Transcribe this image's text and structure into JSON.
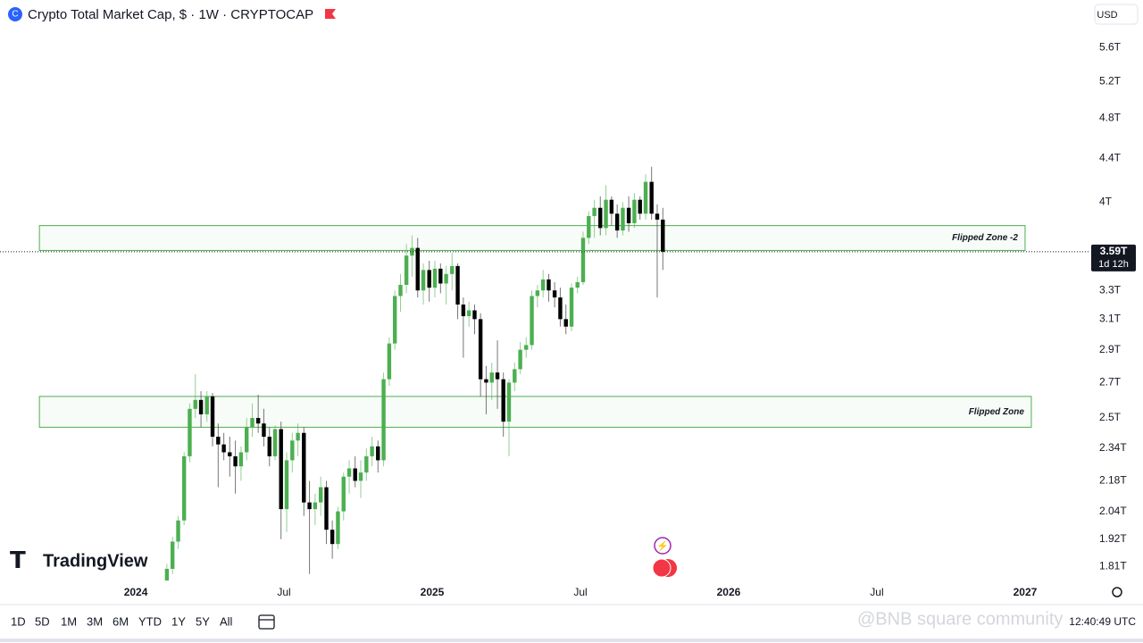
{
  "chart_data": {
    "type": "candlestick",
    "title": "Crypto Total Market Cap, $ · 1W · CRYPTOCAP",
    "currency": "USD",
    "log_scale": true,
    "ylim": [
      1.755,
      6.21
    ],
    "yticks": [
      {
        "value": 5.6,
        "label": "5.6T"
      },
      {
        "value": 5.2,
        "label": "5.2T"
      },
      {
        "value": 4.8,
        "label": "4.8T"
      },
      {
        "value": 4.4,
        "label": "4.4T"
      },
      {
        "value": 4,
        "label": "4T"
      },
      {
        "value": 3.3,
        "label": "3.3T"
      },
      {
        "value": 3.1,
        "label": "3.1T"
      },
      {
        "value": 2.9,
        "label": "2.9T"
      },
      {
        "value": 2.7,
        "label": "2.7T"
      },
      {
        "value": 2.5,
        "label": "2.5T"
      },
      {
        "value": 2.34,
        "label": "2.34T"
      },
      {
        "value": 2.18,
        "label": "2.18T"
      },
      {
        "value": 2.04,
        "label": "2.04T"
      },
      {
        "value": 1.92,
        "label": "1.92T"
      },
      {
        "value": 1.81,
        "label": "1.81T"
      }
    ],
    "xlim": [
      2023.542,
      2027.217
    ],
    "xticks": [
      {
        "value": 2024,
        "label": "2024"
      },
      {
        "value": 2024.5,
        "label": "Jul"
      },
      {
        "value": 2025,
        "label": "2025"
      },
      {
        "value": 2025.5,
        "label": "Jul"
      },
      {
        "value": 2026,
        "label": "2026"
      },
      {
        "value": 2026.5,
        "label": "Jul"
      },
      {
        "value": 2027,
        "label": "2027"
      }
    ],
    "up_color": "#4caf50",
    "down_color": "#000000",
    "x": [
      2024.105,
      2024.124,
      2024.143,
      2024.163,
      2024.182,
      2024.201,
      2024.22,
      2024.24,
      2024.259,
      2024.278,
      2024.297,
      2024.317,
      2024.336,
      2024.355,
      2024.374,
      2024.393,
      2024.413,
      2024.432,
      2024.451,
      2024.47,
      2024.49,
      2024.509,
      2024.528,
      2024.547,
      2024.567,
      2024.586,
      2024.605,
      2024.624,
      2024.643,
      2024.663,
      2024.682,
      2024.701,
      2024.72,
      2024.74,
      2024.759,
      2024.778,
      2024.797,
      2024.817,
      2024.836,
      2024.855,
      2024.874,
      2024.893,
      2024.913,
      2024.932,
      2024.951,
      2024.97,
      2024.99,
      2025.009,
      2025.028,
      2025.047,
      2025.067,
      2025.086,
      2025.105,
      2025.124,
      2025.143,
      2025.163,
      2025.182,
      2025.201,
      2025.22,
      2025.24,
      2025.259,
      2025.278,
      2025.297,
      2025.317,
      2025.336,
      2025.355,
      2025.374,
      2025.393,
      2025.413,
      2025.432,
      2025.451,
      2025.47,
      2025.49,
      2025.509,
      2025.528,
      2025.547,
      2025.567,
      2025.586,
      2025.605,
      2025.624,
      2025.643,
      2025.663,
      2025.682,
      2025.701,
      2025.72,
      2025.74,
      2025.759,
      2025.778
    ],
    "ohlc": [
      [
        1.74,
        1.82,
        1.72,
        1.8
      ],
      [
        1.8,
        1.93,
        1.78,
        1.91
      ],
      [
        1.91,
        2.02,
        1.88,
        2.0
      ],
      [
        2.0,
        2.32,
        1.98,
        2.3
      ],
      [
        2.3,
        2.58,
        2.27,
        2.55
      ],
      [
        2.55,
        2.75,
        2.5,
        2.6
      ],
      [
        2.6,
        2.65,
        2.45,
        2.52
      ],
      [
        2.52,
        2.65,
        2.48,
        2.62
      ],
      [
        2.62,
        2.64,
        2.35,
        2.4
      ],
      [
        2.4,
        2.47,
        2.15,
        2.36
      ],
      [
        2.36,
        2.42,
        2.28,
        2.32
      ],
      [
        2.32,
        2.4,
        2.2,
        2.3
      ],
      [
        2.3,
        2.38,
        2.12,
        2.25
      ],
      [
        2.25,
        2.35,
        2.18,
        2.32
      ],
      [
        2.32,
        2.5,
        2.28,
        2.45
      ],
      [
        2.45,
        2.58,
        2.4,
        2.5
      ],
      [
        2.5,
        2.63,
        2.42,
        2.47
      ],
      [
        2.47,
        2.55,
        2.35,
        2.4
      ],
      [
        2.4,
        2.45,
        2.25,
        2.3
      ],
      [
        2.3,
        2.46,
        2.28,
        2.44
      ],
      [
        2.44,
        2.48,
        1.92,
        2.05
      ],
      [
        2.05,
        2.32,
        1.95,
        2.28
      ],
      [
        2.28,
        2.42,
        2.22,
        2.38
      ],
      [
        2.38,
        2.47,
        2.3,
        2.42
      ],
      [
        2.42,
        2.45,
        2.02,
        2.08
      ],
      [
        2.08,
        2.18,
        1.78,
        2.05
      ],
      [
        2.05,
        2.12,
        1.98,
        2.08
      ],
      [
        2.08,
        2.2,
        2.02,
        2.15
      ],
      [
        2.15,
        2.18,
        1.9,
        1.96
      ],
      [
        1.96,
        2.0,
        1.84,
        1.9
      ],
      [
        1.9,
        2.06,
        1.88,
        2.04
      ],
      [
        2.04,
        2.22,
        2.0,
        2.2
      ],
      [
        2.2,
        2.28,
        2.12,
        2.24
      ],
      [
        2.24,
        2.3,
        2.15,
        2.18
      ],
      [
        2.18,
        2.28,
        2.1,
        2.22
      ],
      [
        2.22,
        2.34,
        2.18,
        2.3
      ],
      [
        2.3,
        2.4,
        2.25,
        2.35
      ],
      [
        2.35,
        2.38,
        2.22,
        2.28
      ],
      [
        2.28,
        2.76,
        2.25,
        2.72
      ],
      [
        2.72,
        2.98,
        2.68,
        2.94
      ],
      [
        2.94,
        3.3,
        2.9,
        3.26
      ],
      [
        3.26,
        3.42,
        3.15,
        3.34
      ],
      [
        3.34,
        3.65,
        3.28,
        3.56
      ],
      [
        3.56,
        3.72,
        3.4,
        3.62
      ],
      [
        3.62,
        3.7,
        3.25,
        3.3
      ],
      [
        3.3,
        3.5,
        3.2,
        3.45
      ],
      [
        3.45,
        3.52,
        3.22,
        3.32
      ],
      [
        3.32,
        3.52,
        3.25,
        3.46
      ],
      [
        3.46,
        3.5,
        3.28,
        3.35
      ],
      [
        3.35,
        3.48,
        3.2,
        3.42
      ],
      [
        3.42,
        3.58,
        3.3,
        3.48
      ],
      [
        3.48,
        3.5,
        3.1,
        3.2
      ],
      [
        3.2,
        3.25,
        2.85,
        3.12
      ],
      [
        3.12,
        3.22,
        3.05,
        3.16
      ],
      [
        3.16,
        3.2,
        3.0,
        3.1
      ],
      [
        3.1,
        3.14,
        2.62,
        2.72
      ],
      [
        2.72,
        2.8,
        2.52,
        2.7
      ],
      [
        2.7,
        2.82,
        2.6,
        2.76
      ],
      [
        2.76,
        2.96,
        2.55,
        2.72
      ],
      [
        2.72,
        2.76,
        2.4,
        2.48
      ],
      [
        2.48,
        2.72,
        2.3,
        2.7
      ],
      [
        2.7,
        2.82,
        2.65,
        2.78
      ],
      [
        2.78,
        2.95,
        2.75,
        2.9
      ],
      [
        2.9,
        2.98,
        2.85,
        2.93
      ],
      [
        2.93,
        3.3,
        2.9,
        3.26
      ],
      [
        3.26,
        3.34,
        3.18,
        3.3
      ],
      [
        3.3,
        3.45,
        3.25,
        3.38
      ],
      [
        3.38,
        3.42,
        3.22,
        3.3
      ],
      [
        3.3,
        3.36,
        3.18,
        3.25
      ],
      [
        3.25,
        3.32,
        3.05,
        3.1
      ],
      [
        3.1,
        3.2,
        3.0,
        3.05
      ],
      [
        3.05,
        3.35,
        3.02,
        3.32
      ],
      [
        3.32,
        3.4,
        3.28,
        3.36
      ],
      [
        3.36,
        3.75,
        3.34,
        3.7
      ],
      [
        3.7,
        3.92,
        3.65,
        3.88
      ],
      [
        3.88,
        4.02,
        3.7,
        3.95
      ],
      [
        3.95,
        4.05,
        3.72,
        3.78
      ],
      [
        3.78,
        4.15,
        3.72,
        4.02
      ],
      [
        4.02,
        4.05,
        3.8,
        3.9
      ],
      [
        3.9,
        3.98,
        3.7,
        3.76
      ],
      [
        3.76,
        4.0,
        3.72,
        3.95
      ],
      [
        3.95,
        4.05,
        3.75,
        3.82
      ],
      [
        3.82,
        4.08,
        3.78,
        4.02
      ],
      [
        4.02,
        4.05,
        3.85,
        3.9
      ],
      [
        3.9,
        4.25,
        3.85,
        4.18
      ],
      [
        4.18,
        4.32,
        3.85,
        3.9
      ],
      [
        3.9,
        3.98,
        3.25,
        3.85
      ],
      [
        3.85,
        3.95,
        3.45,
        3.59
      ]
    ],
    "zones": [
      {
        "label": "Flipped Zone -2",
        "x": [
          2023.675,
          2027.0
        ],
        "y": [
          3.6,
          3.8
        ]
      },
      {
        "label": "Flipped Zone",
        "x": [
          2023.675,
          2027.021
        ],
        "y": [
          2.45,
          2.62
        ]
      }
    ],
    "zone_color": "#4caf50",
    "last_price": {
      "value": 3.59,
      "label": "3.59T"
    },
    "countdown": "1d 12h"
  },
  "ui": {
    "range_buttons": [
      "1D",
      "5D",
      "1M",
      "3M",
      "6M",
      "YTD",
      "1Y",
      "5Y",
      "All"
    ],
    "logo": "TradingView",
    "watermark": "@BNB square community",
    "clock": "12:40:49 UTC"
  }
}
